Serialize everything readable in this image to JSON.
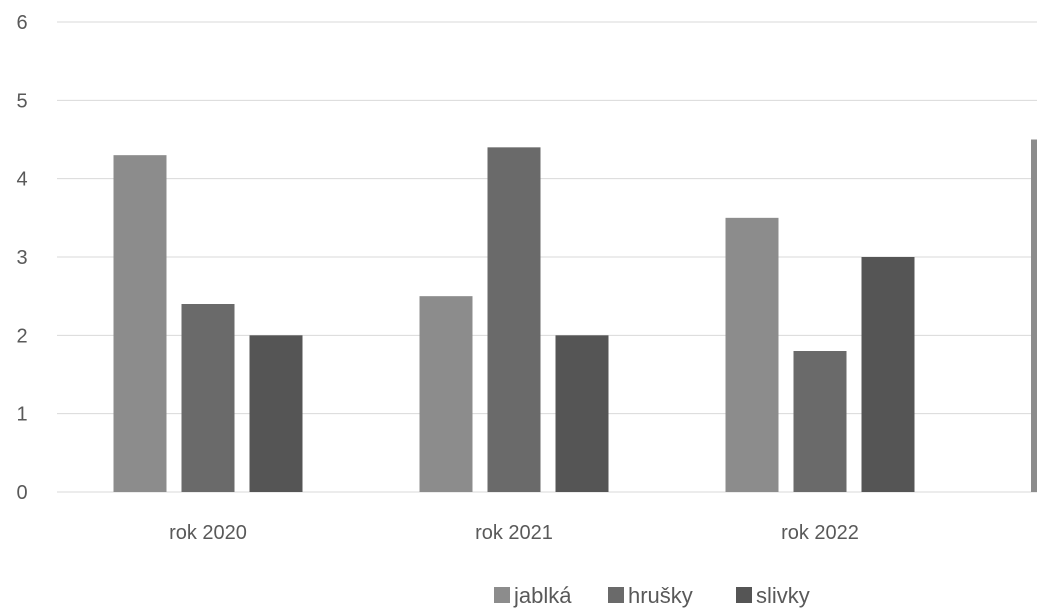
{
  "chart_data": {
    "type": "bar",
    "title": "",
    "xlabel": "",
    "ylabel": "",
    "categories": [
      "rok 2020",
      "rok 2021",
      "rok 2022"
    ],
    "series": [
      {
        "name": "jablká",
        "values": [
          4.3,
          2.5,
          3.5
        ],
        "color": "#8c8c8c"
      },
      {
        "name": "hrušky",
        "values": [
          2.4,
          4.4,
          1.8
        ],
        "color": "#6a6a6a"
      },
      {
        "name": "slivky",
        "values": [
          2.0,
          2.0,
          3.0
        ],
        "color": "#555555"
      }
    ],
    "ylim": [
      0,
      6
    ],
    "yticks": [
      "0",
      "1",
      "2",
      "3",
      "4",
      "5",
      "6"
    ],
    "grid": true,
    "legend_position": "bottom",
    "partial_cropped_bar_value": 4.5
  }
}
